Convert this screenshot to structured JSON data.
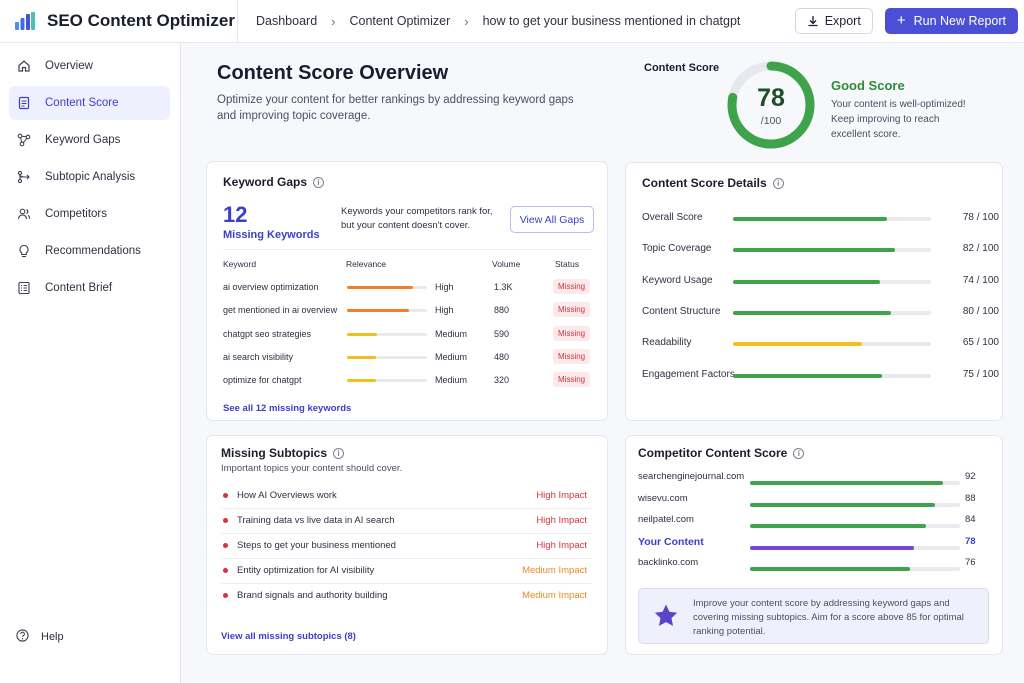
{
  "app": {
    "title": "SEO Content Optimizer"
  },
  "breadcrumbs": [
    "Dashboard",
    "Content Optimizer",
    "how to get your business mentioned in chatgpt"
  ],
  "toolbar": {
    "export_label": "Export",
    "run_label": "Run New Report"
  },
  "sidebar": {
    "items": [
      {
        "label": "Overview",
        "icon": "home-icon"
      },
      {
        "label": "Content Score",
        "icon": "document-icon",
        "active": true
      },
      {
        "label": "Keyword Gaps",
        "icon": "network-icon"
      },
      {
        "label": "Subtopic Analysis",
        "icon": "branch-icon"
      },
      {
        "label": "Competitors",
        "icon": "users-icon"
      },
      {
        "label": "Recommendations",
        "icon": "lightbulb-icon"
      },
      {
        "label": "Content Brief",
        "icon": "list-icon"
      }
    ],
    "help_label": "Help"
  },
  "page": {
    "title": "Content Score Overview",
    "subtitle": "Optimize your content for better rankings by addressing keyword gaps and improving topic coverage."
  },
  "score": {
    "label": "Content Score",
    "value": "78",
    "denominator": "/100",
    "percent": 0.78,
    "status_title": "Good Score",
    "status_desc": "Your content is well-optimized! Keep improving to reach excellent score.",
    "color": "#3ea34b"
  },
  "keyword_gaps": {
    "title": "Keyword Gaps",
    "count": "12",
    "count_label": "Missing Keywords",
    "description": "Keywords your competitors rank for, but your content doesn't cover.",
    "view_button": "View All Gaps",
    "headers": {
      "keyword": "Keyword",
      "relevance": "Relevance",
      "volume": "Volume",
      "status": "Status"
    },
    "rows": [
      {
        "keyword": "ai overview optimization",
        "relevance": "High",
        "relevance_level": 0.82,
        "color": "#f07f2a",
        "volume": "1.3K",
        "status": "Missing"
      },
      {
        "keyword": "get mentioned in ai overview",
        "relevance": "High",
        "relevance_level": 0.78,
        "color": "#f07f2a",
        "volume": "880",
        "status": "Missing"
      },
      {
        "keyword": "chatgpt seo strategies",
        "relevance": "Medium",
        "relevance_level": 0.38,
        "color": "#f2c01e",
        "volume": "590",
        "status": "Missing"
      },
      {
        "keyword": "ai search visibility",
        "relevance": "Medium",
        "relevance_level": 0.36,
        "color": "#f2c01e",
        "volume": "480",
        "status": "Missing"
      },
      {
        "keyword": "optimize for chatgpt",
        "relevance": "Medium",
        "relevance_level": 0.36,
        "color": "#f2c01e",
        "volume": "320",
        "status": "Missing"
      }
    ],
    "see_all": "See all 12 missing keywords"
  },
  "score_details": {
    "title": "Content Score Details",
    "rows": [
      {
        "label": "Overall Score",
        "value": 78,
        "display": "78 / 100",
        "color": "#3ea34b"
      },
      {
        "label": "Topic Coverage",
        "value": 82,
        "display": "82 / 100",
        "color": "#3ea34b"
      },
      {
        "label": "Keyword Usage",
        "value": 74,
        "display": "74 / 100",
        "color": "#3ea34b"
      },
      {
        "label": "Content Structure",
        "value": 80,
        "display": "80 / 100",
        "color": "#3ea34b"
      },
      {
        "label": "Readability",
        "value": 65,
        "display": "65 / 100",
        "color": "#f2c01e"
      },
      {
        "label": "Engagement Factors",
        "value": 75,
        "display": "75 / 100",
        "color": "#3ea34b"
      }
    ]
  },
  "missing_subtopics": {
    "title": "Missing Subtopics",
    "subtitle": "Important topics your content should cover.",
    "rows": [
      {
        "label": "How AI Overviews work",
        "impact": "High Impact",
        "color": "#d7333f"
      },
      {
        "label": "Training data vs live data in AI search",
        "impact": "High Impact",
        "color": "#d7333f"
      },
      {
        "label": "Steps to get your business mentioned",
        "impact": "High Impact",
        "color": "#d7333f"
      },
      {
        "label": "Entity optimization for AI visibility",
        "impact": "Medium Impact",
        "color": "#e88a1f"
      },
      {
        "label": "Brand signals and authority building",
        "impact": "Medium Impact",
        "color": "#e88a1f"
      }
    ],
    "view_all": "View all missing subtopics (8)"
  },
  "competitors": {
    "title": "Competitor Content Score",
    "rows": [
      {
        "name": "searchenginejournal.com",
        "score": 92,
        "color": "#3ea34b",
        "highlight": false
      },
      {
        "name": "wisevu.com",
        "score": 88,
        "color": "#3ea34b",
        "highlight": false
      },
      {
        "name": "neilpatel.com",
        "score": 84,
        "color": "#3ea34b",
        "highlight": false
      },
      {
        "name": "Your Content",
        "score": 78,
        "color": "#7646d6",
        "highlight": true
      },
      {
        "name": "backlinko.com",
        "score": 76,
        "color": "#3ea34b",
        "highlight": false
      }
    ],
    "tip": "Improve your content score by addressing keyword gaps and covering missing subtopics. Aim for a score above 85 for optimal ranking potential."
  }
}
